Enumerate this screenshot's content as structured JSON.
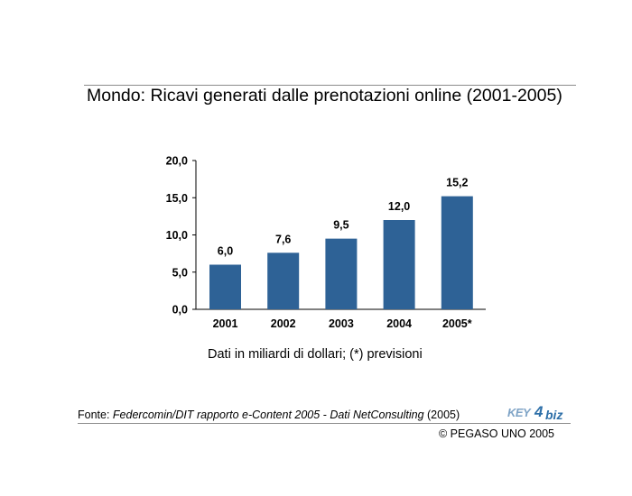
{
  "chart_data": {
    "type": "bar",
    "title": "Mondo: Ricavi generati dalle prenotazioni online (2001-2005)",
    "categories": [
      "2001",
      "2002",
      "2003",
      "2004",
      "2005*"
    ],
    "values": [
      6.0,
      7.6,
      9.5,
      12.0,
      15.2
    ],
    "value_labels": [
      "6,0",
      "7,6",
      "9,5",
      "12,0",
      "15,2"
    ],
    "ylim": [
      0,
      20
    ],
    "yticks": [
      0,
      5,
      10,
      15,
      20
    ],
    "ytick_labels": [
      "0,0",
      "5,0",
      "10,0",
      "15,0",
      "20,0"
    ],
    "xlabel": "",
    "ylabel": "",
    "bar_color": "#2e6296",
    "grid": false,
    "legend": "none"
  },
  "note": "Dati in miliardi di dollari; (*) previsioni",
  "source": {
    "prefix": "Fonte: ",
    "italic": "Federcomin/DIT rapporto e-Content 2005 - Dati NetConsulting",
    "suffix": " (2005)"
  },
  "logo": {
    "part1": "KEY",
    "part2": "4",
    "part3": "biz"
  },
  "copyright": "© PEGASO UNO 2005"
}
